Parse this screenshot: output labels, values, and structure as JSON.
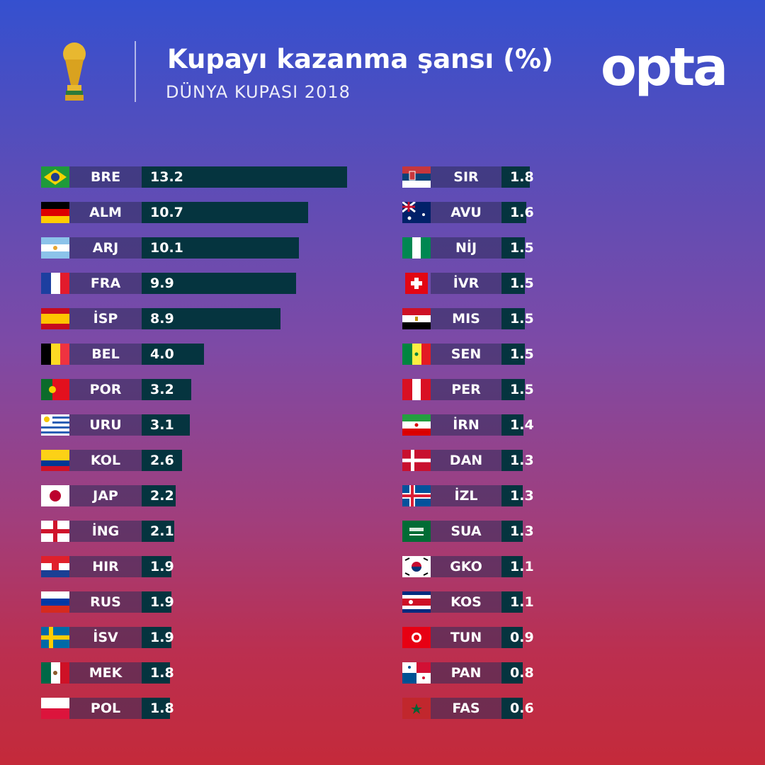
{
  "header": {
    "title": "Kupayı kazanma şansı (%)",
    "subtitle": "DÜNYA KUPASI 2018",
    "logo": "opta"
  },
  "chart_data": {
    "type": "bar",
    "orientation": "horizontal",
    "unit": "%",
    "bar_color": "#05343f",
    "columns": [
      {
        "categories": [
          "BRE",
          "ALM",
          "ARJ",
          "FRA",
          "İSP",
          "BEL",
          "POR",
          "URU",
          "KOL",
          "JAP",
          "İNG",
          "HIR",
          "RUS",
          "İSV",
          "MEK",
          "POL"
        ],
        "values": [
          13.2,
          10.7,
          10.1,
          9.9,
          8.9,
          4.0,
          3.2,
          3.1,
          2.6,
          2.2,
          2.1,
          1.9,
          1.9,
          1.9,
          1.8,
          1.8
        ]
      },
      {
        "categories": [
          "SIR",
          "AVU",
          "NİJ",
          "İVR",
          "MIS",
          "SEN",
          "PER",
          "İRN",
          "DAN",
          "İZL",
          "SUA",
          "GKO",
          "KOS",
          "TUN",
          "PAN",
          "FAS"
        ],
        "values": [
          1.8,
          1.6,
          1.5,
          1.5,
          1.5,
          1.5,
          1.5,
          1.4,
          1.3,
          1.3,
          1.3,
          1.1,
          1.1,
          0.9,
          0.8,
          0.6
        ]
      }
    ]
  }
}
